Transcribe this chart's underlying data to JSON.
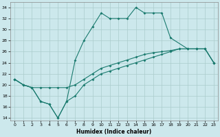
{
  "title": "",
  "xlabel": "Humidex (Indice chaleur)",
  "bg_color": "#cce8ec",
  "grid_color": "#aacccc",
  "line_color": "#1a7a6e",
  "xlim": [
    -0.5,
    23.5
  ],
  "ylim": [
    13.5,
    35
  ],
  "xticks": [
    0,
    1,
    2,
    3,
    4,
    5,
    6,
    7,
    8,
    9,
    10,
    11,
    12,
    13,
    14,
    15,
    16,
    17,
    18,
    19,
    20,
    21,
    22,
    23
  ],
  "yticks": [
    14,
    16,
    18,
    20,
    22,
    24,
    26,
    28,
    30,
    32,
    34
  ],
  "line1_x": [
    0,
    1,
    2,
    3,
    4,
    5,
    6,
    7,
    8,
    9,
    10,
    11,
    12,
    13,
    14,
    15,
    16,
    17,
    18,
    20,
    21,
    22,
    23
  ],
  "line1_y": [
    21,
    20,
    19.5,
    17,
    16.5,
    14,
    17,
    24.5,
    28,
    30.5,
    33,
    32,
    32,
    32,
    34,
    33,
    33,
    33,
    28.5,
    26.5,
    26.5,
    26.5,
    24
  ],
  "line2_x": [
    0,
    1,
    2,
    3,
    4,
    5,
    6,
    7,
    8,
    9,
    10,
    11,
    12,
    13,
    14,
    15,
    16,
    17,
    18,
    19,
    20,
    21,
    22,
    23
  ],
  "line2_y": [
    21,
    20,
    19.5,
    19.5,
    19.5,
    19.5,
    19.5,
    20,
    21,
    22,
    23,
    23.5,
    24,
    24.5,
    25,
    25.5,
    25.8,
    26,
    26.2,
    26.5,
    26.5,
    26.5,
    26.5,
    24
  ],
  "line3_x": [
    0,
    1,
    2,
    3,
    4,
    5,
    6,
    7,
    8,
    9,
    10,
    11,
    12,
    13,
    14,
    15,
    16,
    17,
    18,
    19,
    20,
    21,
    22,
    23
  ],
  "line3_y": [
    21,
    20,
    19.5,
    17,
    16.5,
    14,
    17,
    18,
    20,
    21,
    22,
    22.5,
    23,
    23.5,
    24,
    24.5,
    25,
    25.5,
    26,
    26.5,
    26.5,
    26.5,
    26.5,
    24
  ]
}
